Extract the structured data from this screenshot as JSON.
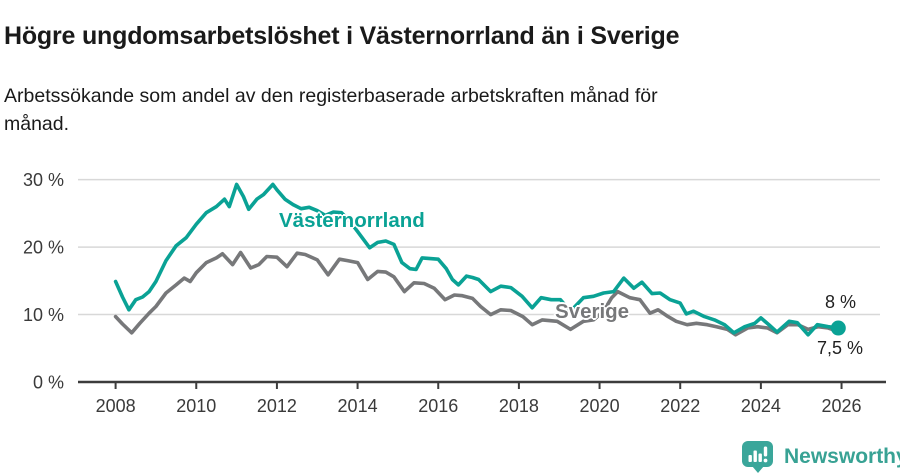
{
  "header": {
    "title": "Högre ungdomsarbetslöshet i Västernorrland än i Sverige",
    "subtitle": "Arbetssökande som andel av den registerbaserade arbetskraften månad för\nmånad."
  },
  "footer": {
    "brand": "Newsworthy",
    "brand_color": "#38a294",
    "logo_icon": "newsworthy-speech-bubble-bar-chart-icon"
  },
  "chart_data": {
    "type": "line",
    "title": "Högre ungdomsarbetslöshet i Västernorrland än i Sverige",
    "xlabel": "",
    "ylabel": "",
    "unit": "%",
    "xlim": [
      2007.1,
      2027
    ],
    "ylim": [
      0,
      31
    ],
    "grid": "horizontal",
    "grid_color": "#d8d8d8",
    "axis_color": "#3c3c3c",
    "legend_position": "inline-annotations",
    "x_ticks": [
      2008,
      2010,
      2012,
      2014,
      2016,
      2018,
      2020,
      2022,
      2024,
      2026
    ],
    "y_ticks": [
      {
        "value": 0,
        "label": "0 %"
      },
      {
        "value": 10,
        "label": "10 %"
      },
      {
        "value": 20,
        "label": "20 %"
      },
      {
        "value": 30,
        "label": "30 %"
      }
    ],
    "series": [
      {
        "name": "Sverige",
        "color": "#77787a",
        "end_value": 7.5,
        "end_label": "7,5 %",
        "end_marker": false,
        "points": [
          [
            2008.0,
            9.7
          ],
          [
            2008.17,
            8.6
          ],
          [
            2008.4,
            7.3
          ],
          [
            2008.6,
            8.7
          ],
          [
            2008.83,
            10.2
          ],
          [
            2009.0,
            11.2
          ],
          [
            2009.25,
            13.2
          ],
          [
            2009.5,
            14.4
          ],
          [
            2009.7,
            15.4
          ],
          [
            2009.85,
            14.9
          ],
          [
            2010.0,
            16.2
          ],
          [
            2010.25,
            17.7
          ],
          [
            2010.5,
            18.4
          ],
          [
            2010.65,
            19.0
          ],
          [
            2010.9,
            17.4
          ],
          [
            2011.1,
            19.2
          ],
          [
            2011.35,
            16.9
          ],
          [
            2011.55,
            17.4
          ],
          [
            2011.75,
            18.6
          ],
          [
            2012.0,
            18.5
          ],
          [
            2012.25,
            17.1
          ],
          [
            2012.5,
            19.1
          ],
          [
            2012.7,
            18.9
          ],
          [
            2013.0,
            18.1
          ],
          [
            2013.27,
            15.9
          ],
          [
            2013.55,
            18.2
          ],
          [
            2013.75,
            18.0
          ],
          [
            2014.0,
            17.7
          ],
          [
            2014.25,
            15.2
          ],
          [
            2014.5,
            16.4
          ],
          [
            2014.7,
            16.3
          ],
          [
            2014.9,
            15.6
          ],
          [
            2015.16,
            13.4
          ],
          [
            2015.4,
            14.7
          ],
          [
            2015.65,
            14.6
          ],
          [
            2015.9,
            13.9
          ],
          [
            2016.17,
            12.2
          ],
          [
            2016.4,
            12.9
          ],
          [
            2016.6,
            12.8
          ],
          [
            2016.85,
            12.4
          ],
          [
            2017.05,
            11.2
          ],
          [
            2017.3,
            10.0
          ],
          [
            2017.55,
            10.7
          ],
          [
            2017.8,
            10.6
          ],
          [
            2018.1,
            9.7
          ],
          [
            2018.33,
            8.5
          ],
          [
            2018.58,
            9.2
          ],
          [
            2018.95,
            9.0
          ],
          [
            2019.28,
            7.8
          ],
          [
            2019.6,
            9.0
          ],
          [
            2019.85,
            9.2
          ],
          [
            2020.1,
            10.5
          ],
          [
            2020.3,
            12.5
          ],
          [
            2020.45,
            13.4
          ],
          [
            2020.75,
            12.5
          ],
          [
            2021.0,
            12.2
          ],
          [
            2021.25,
            10.2
          ],
          [
            2021.45,
            10.7
          ],
          [
            2021.7,
            9.7
          ],
          [
            2021.9,
            9.0
          ],
          [
            2022.17,
            8.5
          ],
          [
            2022.4,
            8.7
          ],
          [
            2022.67,
            8.5
          ],
          [
            2022.9,
            8.2
          ],
          [
            2023.17,
            7.8
          ],
          [
            2023.37,
            7.0
          ],
          [
            2023.67,
            8.0
          ],
          [
            2023.92,
            8.2
          ],
          [
            2024.17,
            8.0
          ],
          [
            2024.4,
            7.3
          ],
          [
            2024.67,
            8.5
          ],
          [
            2024.92,
            8.5
          ],
          [
            2025.17,
            7.8
          ],
          [
            2025.42,
            8.2
          ],
          [
            2025.67,
            8.0
          ],
          [
            2025.92,
            7.5
          ]
        ]
      },
      {
        "name": "Västernorrland",
        "color": "#0aa295",
        "end_value": 8.0,
        "end_label": "8 %",
        "end_marker": true,
        "points": [
          [
            2008.0,
            14.9
          ],
          [
            2008.17,
            12.6
          ],
          [
            2008.33,
            10.7
          ],
          [
            2008.5,
            12.2
          ],
          [
            2008.67,
            12.6
          ],
          [
            2008.83,
            13.4
          ],
          [
            2009.0,
            14.9
          ],
          [
            2009.25,
            18.0
          ],
          [
            2009.5,
            20.2
          ],
          [
            2009.75,
            21.4
          ],
          [
            2010.0,
            23.4
          ],
          [
            2010.25,
            25.1
          ],
          [
            2010.5,
            26.0
          ],
          [
            2010.7,
            27.1
          ],
          [
            2010.82,
            26.0
          ],
          [
            2011.0,
            29.3
          ],
          [
            2011.17,
            27.5
          ],
          [
            2011.3,
            25.6
          ],
          [
            2011.5,
            27.1
          ],
          [
            2011.67,
            27.8
          ],
          [
            2011.9,
            29.3
          ],
          [
            2012.0,
            28.5
          ],
          [
            2012.2,
            27.1
          ],
          [
            2012.4,
            26.3
          ],
          [
            2012.6,
            25.7
          ],
          [
            2012.8,
            25.9
          ],
          [
            2013.0,
            25.4
          ],
          [
            2013.2,
            24.7
          ],
          [
            2013.4,
            25.2
          ],
          [
            2013.6,
            25.1
          ],
          [
            2013.8,
            23.9
          ],
          [
            2014.0,
            22.3
          ],
          [
            2014.3,
            19.9
          ],
          [
            2014.5,
            20.7
          ],
          [
            2014.7,
            20.9
          ],
          [
            2014.9,
            20.4
          ],
          [
            2015.1,
            17.7
          ],
          [
            2015.3,
            16.8
          ],
          [
            2015.45,
            16.7
          ],
          [
            2015.6,
            18.4
          ],
          [
            2015.8,
            18.3
          ],
          [
            2016.0,
            18.2
          ],
          [
            2016.2,
            16.8
          ],
          [
            2016.35,
            15.2
          ],
          [
            2016.5,
            14.4
          ],
          [
            2016.7,
            15.7
          ],
          [
            2016.85,
            15.5
          ],
          [
            2017.0,
            15.2
          ],
          [
            2017.3,
            13.4
          ],
          [
            2017.55,
            14.2
          ],
          [
            2017.8,
            14.0
          ],
          [
            2018.08,
            12.7
          ],
          [
            2018.33,
            11.0
          ],
          [
            2018.55,
            12.5
          ],
          [
            2018.8,
            12.2
          ],
          [
            2019.03,
            12.2
          ],
          [
            2019.28,
            10.5
          ],
          [
            2019.6,
            12.5
          ],
          [
            2019.85,
            12.7
          ],
          [
            2020.1,
            13.2
          ],
          [
            2020.35,
            13.4
          ],
          [
            2020.6,
            15.4
          ],
          [
            2020.85,
            13.9
          ],
          [
            2021.05,
            14.8
          ],
          [
            2021.3,
            13.1
          ],
          [
            2021.5,
            13.2
          ],
          [
            2021.75,
            12.2
          ],
          [
            2022.0,
            11.7
          ],
          [
            2022.15,
            10.1
          ],
          [
            2022.33,
            10.5
          ],
          [
            2022.6,
            9.7
          ],
          [
            2022.85,
            9.2
          ],
          [
            2023.1,
            8.5
          ],
          [
            2023.33,
            7.3
          ],
          [
            2023.6,
            8.2
          ],
          [
            2023.85,
            8.7
          ],
          [
            2024.0,
            9.5
          ],
          [
            2024.2,
            8.5
          ],
          [
            2024.4,
            7.4
          ],
          [
            2024.7,
            9.0
          ],
          [
            2024.9,
            8.8
          ],
          [
            2025.17,
            7.0
          ],
          [
            2025.4,
            8.5
          ],
          [
            2025.67,
            8.2
          ],
          [
            2025.92,
            8.0
          ]
        ]
      }
    ]
  }
}
